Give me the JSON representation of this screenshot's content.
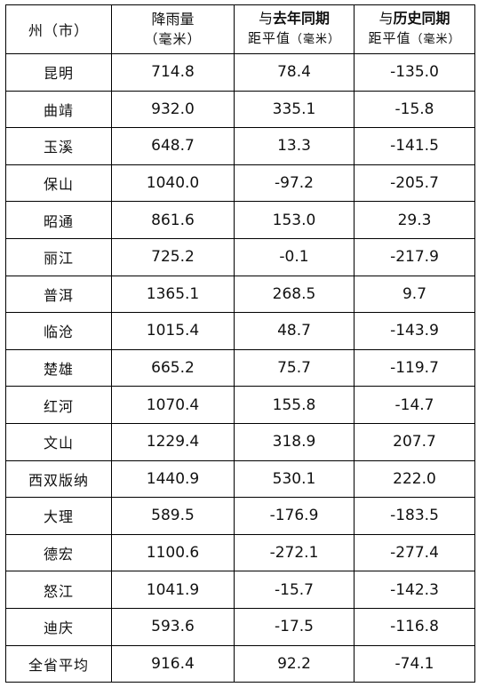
{
  "header": {
    "region": "州（市）",
    "rain_top": "降雨量",
    "rain_unit": "（毫米）",
    "last_year_pre": "与",
    "last_year_bold": "去年同期",
    "last_year_sub": "距平值",
    "last_year_unit": "（毫米）",
    "hist_pre": "与",
    "hist_bold": "历史同期",
    "hist_sub": "距平值",
    "hist_unit": "（毫米）"
  },
  "rows": [
    {
      "name": "昆明",
      "rain": "714.8",
      "vs_last": "78.4",
      "vs_hist": "-135.0"
    },
    {
      "name": "曲靖",
      "rain": "932.0",
      "vs_last": "335.1",
      "vs_hist": "-15.8"
    },
    {
      "name": "玉溪",
      "rain": "648.7",
      "vs_last": "13.3",
      "vs_hist": "-141.5"
    },
    {
      "name": "保山",
      "rain": "1040.0",
      "vs_last": "-97.2",
      "vs_hist": "-205.7"
    },
    {
      "name": "昭通",
      "rain": "861.6",
      "vs_last": "153.0",
      "vs_hist": "29.3"
    },
    {
      "name": "丽江",
      "rain": "725.2",
      "vs_last": "-0.1",
      "vs_hist": "-217.9"
    },
    {
      "name": "普洱",
      "rain": "1365.1",
      "vs_last": "268.5",
      "vs_hist": "9.7"
    },
    {
      "name": "临沧",
      "rain": "1015.4",
      "vs_last": "48.7",
      "vs_hist": "-143.9"
    },
    {
      "name": "楚雄",
      "rain": "665.2",
      "vs_last": "75.7",
      "vs_hist": "-119.7"
    },
    {
      "name": "红河",
      "rain": "1070.4",
      "vs_last": "155.8",
      "vs_hist": "-14.7"
    },
    {
      "name": "文山",
      "rain": "1229.4",
      "vs_last": "318.9",
      "vs_hist": "207.7"
    },
    {
      "name": "西双版纳",
      "rain": "1440.9",
      "vs_last": "530.1",
      "vs_hist": "222.0"
    },
    {
      "name": "大理",
      "rain": "589.5",
      "vs_last": "-176.9",
      "vs_hist": "-183.5"
    },
    {
      "name": "德宏",
      "rain": "1100.6",
      "vs_last": "-272.1",
      "vs_hist": "-277.4"
    },
    {
      "name": "怒江",
      "rain": "1041.9",
      "vs_last": "-15.7",
      "vs_hist": "-142.3"
    },
    {
      "name": "迪庆",
      "rain": "593.6",
      "vs_last": "-17.5",
      "vs_hist": "-116.8"
    },
    {
      "name": "全省平均",
      "rain": "916.4",
      "vs_last": "92.2",
      "vs_hist": "-74.1"
    }
  ]
}
